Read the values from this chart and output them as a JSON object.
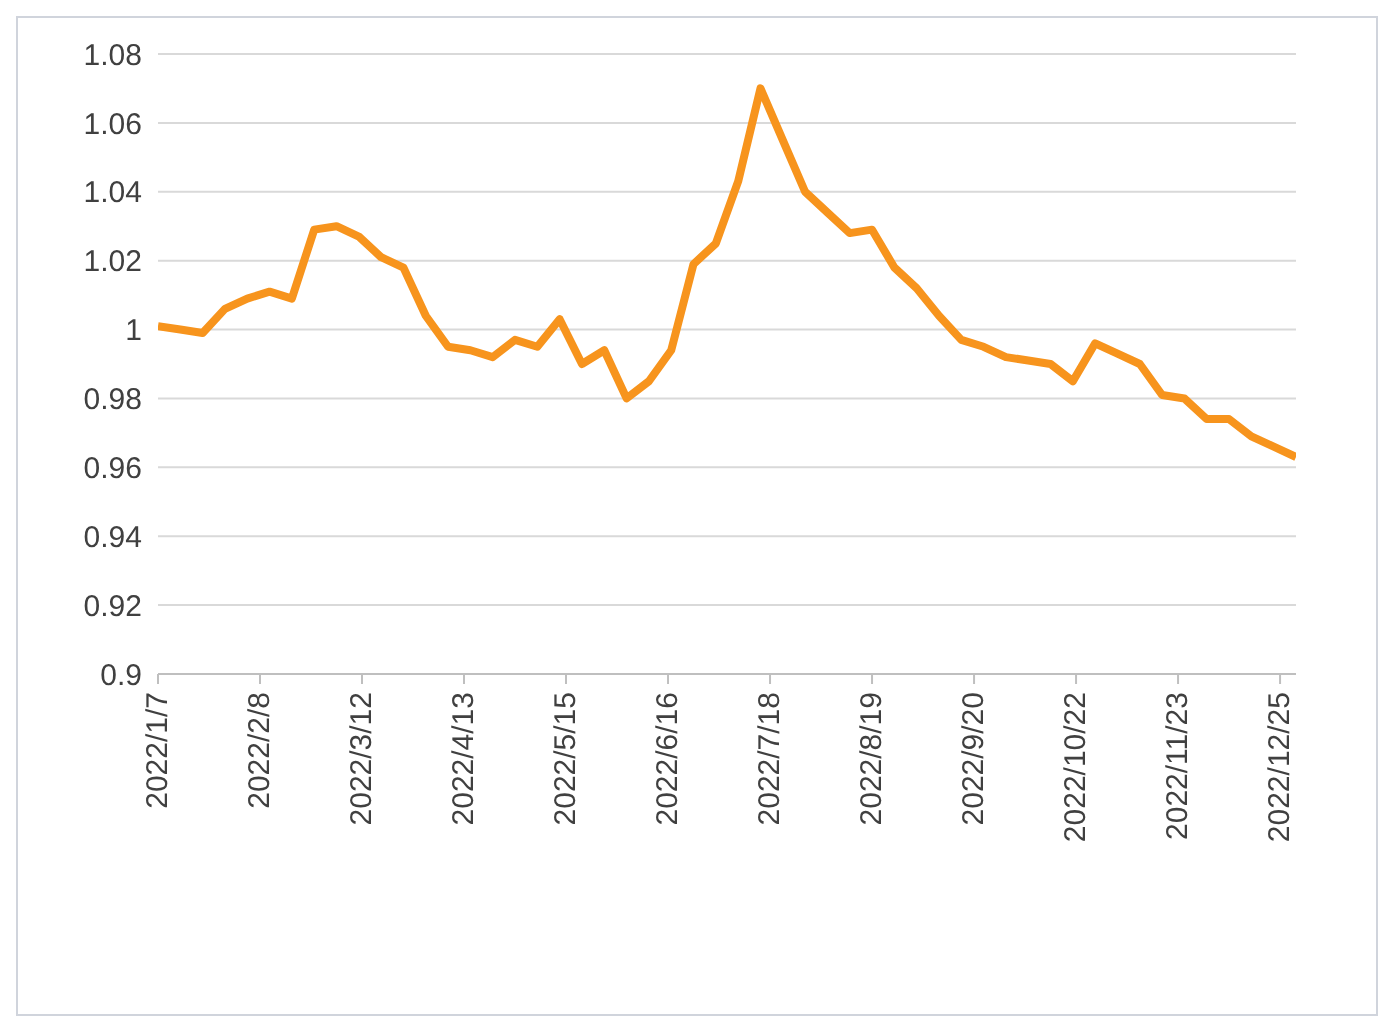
{
  "chart_data": {
    "type": "line",
    "x": [
      "2022-01-07",
      "2022-01-14",
      "2022-01-21",
      "2022-01-28",
      "2022-02-04",
      "2022-02-11",
      "2022-02-18",
      "2022-02-25",
      "2022-03-04",
      "2022-03-11",
      "2022-03-18",
      "2022-03-25",
      "2022-04-01",
      "2022-04-08",
      "2022-04-15",
      "2022-04-22",
      "2022-04-29",
      "2022-05-06",
      "2022-05-13",
      "2022-05-20",
      "2022-05-27",
      "2022-06-03",
      "2022-06-10",
      "2022-06-17",
      "2022-06-24",
      "2022-07-01",
      "2022-07-08",
      "2022-07-15",
      "2022-07-22",
      "2022-07-29",
      "2022-08-05",
      "2022-08-12",
      "2022-08-19",
      "2022-08-26",
      "2022-09-02",
      "2022-09-09",
      "2022-09-16",
      "2022-09-23",
      "2022-09-30",
      "2022-10-07",
      "2022-10-14",
      "2022-10-21",
      "2022-10-28",
      "2022-11-04",
      "2022-11-11",
      "2022-11-18",
      "2022-11-25",
      "2022-12-02",
      "2022-12-09",
      "2022-12-16",
      "2022-12-23",
      "2022-12-30"
    ],
    "series": [
      {
        "color": "#f7941d",
        "values": [
          1.001,
          1.0,
          0.999,
          1.006,
          1.009,
          1.011,
          1.009,
          1.029,
          1.03,
          1.027,
          1.021,
          1.018,
          1.004,
          0.995,
          0.994,
          0.992,
          0.997,
          0.995,
          1.003,
          0.99,
          0.994,
          0.98,
          0.985,
          0.994,
          1.019,
          1.025,
          1.043,
          1.07,
          1.055,
          1.04,
          1.034,
          1.028,
          1.029,
          1.018,
          1.012,
          1.004,
          0.997,
          0.995,
          0.992,
          0.991,
          0.99,
          0.985,
          0.996,
          0.993,
          0.99,
          0.981,
          0.98,
          0.974,
          0.974,
          0.969,
          0.966,
          0.963
        ]
      }
    ],
    "xlim": [
      "2022-01-07",
      "2022-12-30"
    ],
    "xticks": [
      {
        "value": "2022-01-07",
        "label": "2022/1/7"
      },
      {
        "value": "2022-02-08",
        "label": "2022/2/8"
      },
      {
        "value": "2022-03-12",
        "label": "2022/3/12"
      },
      {
        "value": "2022-04-13",
        "label": "2022/4/13"
      },
      {
        "value": "2022-05-15",
        "label": "2022/5/15"
      },
      {
        "value": "2022-06-16",
        "label": "2022/6/16"
      },
      {
        "value": "2022-07-18",
        "label": "2022/7/18"
      },
      {
        "value": "2022-08-19",
        "label": "2022/8/19"
      },
      {
        "value": "2022-09-20",
        "label": "2022/9/20"
      },
      {
        "value": "2022-10-22",
        "label": "2022/10/22"
      },
      {
        "value": "2022-11-23",
        "label": "2022/11/23"
      },
      {
        "value": "2022-12-25",
        "label": "2022/12/25"
      }
    ],
    "ylim": [
      0.9,
      1.08
    ],
    "yticks": [
      0.9,
      0.92,
      0.94,
      0.96,
      0.98,
      1,
      1.02,
      1.04,
      1.06,
      1.08
    ],
    "grid": "y",
    "legend": false,
    "marker": "none",
    "line_style": "solid"
  }
}
